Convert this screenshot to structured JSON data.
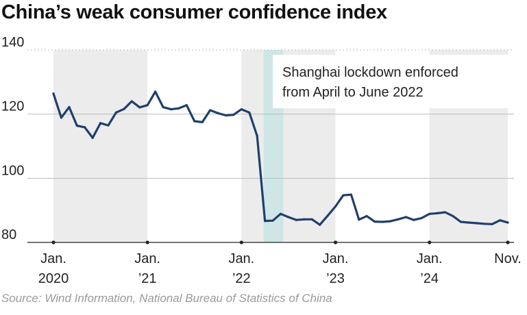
{
  "title": "China’s weak consumer confidence index",
  "source": "Source: Wind Information, National Bureau of Statistics of China",
  "annotation": [
    "Shanghai lockdown enforced",
    "from April to June 2022"
  ],
  "colors": {
    "line": "#1f3f6b",
    "year_band": "#ececec",
    "lockdown_band": "#cfe6e6",
    "grid": "#bbbbbb"
  },
  "chart_data": {
    "type": "line",
    "title": "China’s weak consumer confidence index",
    "xlabel": "",
    "ylabel": "",
    "ylim": [
      80,
      140
    ],
    "yticks": [
      80,
      100,
      120,
      140
    ],
    "xlim": [
      "2020-01",
      "2024-11"
    ],
    "xticks": [
      {
        "x": "2020-01",
        "label": [
          "Jan.",
          "2020"
        ]
      },
      {
        "x": "2021-01",
        "label": [
          "Jan.",
          "’21"
        ]
      },
      {
        "x": "2022-01",
        "label": [
          "Jan.",
          "’22"
        ]
      },
      {
        "x": "2023-01",
        "label": [
          "Jan.",
          "’23"
        ]
      },
      {
        "x": "2024-01",
        "label": [
          "Jan.",
          "’24"
        ]
      },
      {
        "x": "2024-11",
        "label": [
          "Nov.",
          ""
        ]
      }
    ],
    "shaded_years": [
      {
        "from": "2020-01",
        "to": "2021-01"
      },
      {
        "from": "2022-01",
        "to": "2023-01"
      },
      {
        "from": "2024-01",
        "to": "2024-11"
      }
    ],
    "highlight": {
      "from": "2022-04",
      "to": "2022-06"
    },
    "series": [
      {
        "x": [
          "2020-01",
          "2020-02",
          "2020-03",
          "2020-04",
          "2020-05",
          "2020-06",
          "2020-07",
          "2020-08",
          "2020-09",
          "2020-10",
          "2020-11",
          "2020-12",
          "2021-01",
          "2021-02",
          "2021-03",
          "2021-04",
          "2021-05",
          "2021-06",
          "2021-07",
          "2021-08",
          "2021-09",
          "2021-10",
          "2021-11",
          "2021-12",
          "2022-01",
          "2022-02",
          "2022-03",
          "2022-04",
          "2022-05",
          "2022-06",
          "2022-07",
          "2022-08",
          "2022-09",
          "2022-10",
          "2022-11",
          "2022-12",
          "2023-01",
          "2023-02",
          "2023-03",
          "2023-04",
          "2023-05",
          "2023-06",
          "2023-07",
          "2023-08",
          "2023-09",
          "2023-10",
          "2023-11",
          "2023-12",
          "2024-01",
          "2024-02",
          "2024-03",
          "2024-04",
          "2024-05",
          "2024-06",
          "2024-07",
          "2024-08",
          "2024-09",
          "2024-10",
          "2024-11"
        ],
        "values": [
          126.4,
          118.9,
          122.2,
          116.4,
          115.9,
          112.6,
          117.2,
          116.5,
          120.5,
          121.6,
          124.0,
          122.1,
          122.8,
          127.0,
          122.2,
          121.5,
          121.8,
          122.8,
          117.8,
          117.5,
          121.2,
          120.3,
          119.6,
          119.8,
          121.5,
          120.5,
          113.2,
          86.7,
          86.8,
          88.9,
          87.9,
          87.0,
          87.2,
          87.2,
          85.5,
          88.3,
          91.2,
          94.7,
          94.9,
          87.1,
          88.2,
          86.5,
          86.4,
          86.6,
          87.2,
          87.9,
          87.0,
          87.6,
          88.9,
          89.1,
          89.4,
          88.2,
          86.4,
          86.2,
          86.0,
          85.8,
          85.7,
          86.9,
          86.2
        ]
      }
    ]
  }
}
